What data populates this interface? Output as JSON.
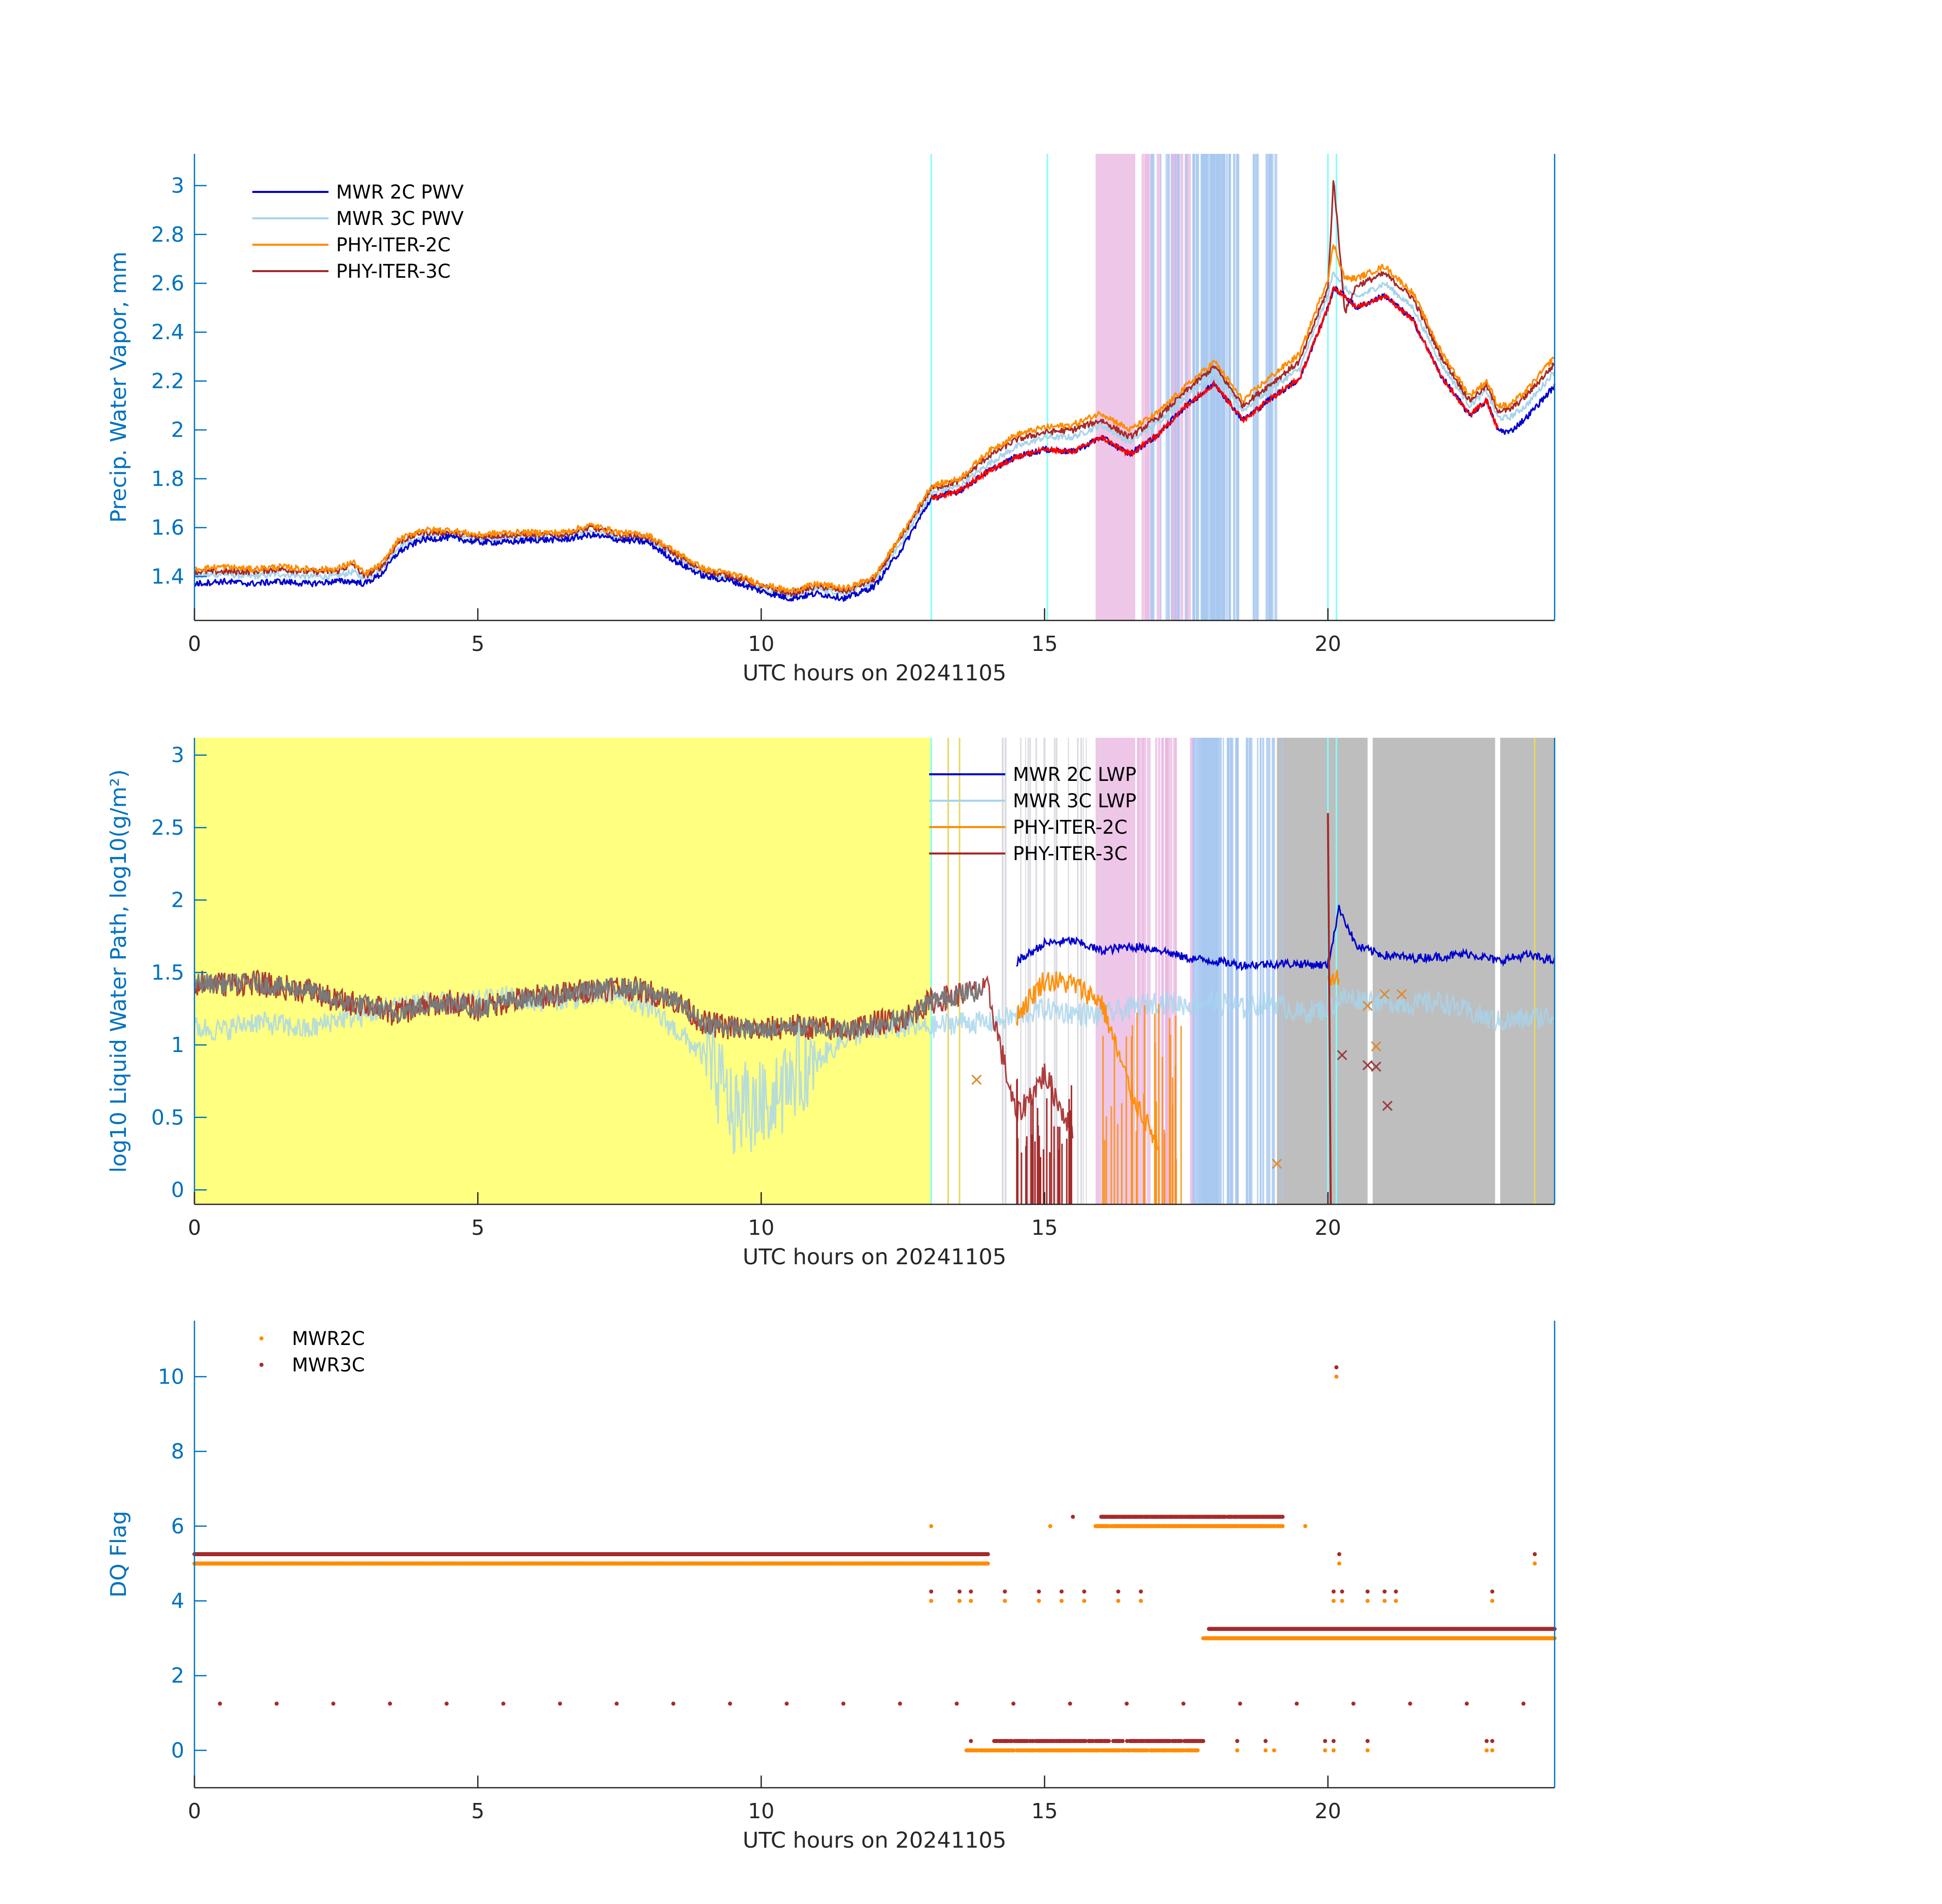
{
  "chart_data": [
    {
      "type": "line",
      "panel": "top",
      "title": "",
      "xlabel": "UTC hours on 20241105",
      "ylabel": "Precip. Water Vapor, mm",
      "xlim": [
        0,
        24
      ],
      "ylim": [
        1.22,
        3.13
      ],
      "xticks": [
        0,
        5,
        10,
        15,
        20
      ],
      "yticks": [
        1.4,
        1.6,
        1.8,
        2,
        2.2,
        2.4,
        2.6,
        2.8,
        3
      ],
      "ytick_labels": [
        "1.4",
        "1.6",
        "1.8",
        "2",
        "2.2",
        "2.4",
        "2.6",
        "2.8",
        "3"
      ],
      "legend_location": "top-left",
      "x": [
        0,
        0.5,
        1,
        1.5,
        2,
        2.5,
        2.8,
        3,
        3.3,
        3.6,
        4,
        4.5,
        5,
        5.5,
        6,
        6.5,
        7,
        7.5,
        8,
        8.5,
        9,
        9.5,
        10,
        10.5,
        11,
        11.5,
        12,
        12.5,
        13,
        13.5,
        14,
        14.5,
        15,
        15.5,
        16,
        16.5,
        17,
        17.5,
        18,
        18.5,
        19,
        19.5,
        20,
        20.1,
        20.3,
        20.5,
        21,
        21.5,
        22,
        22.5,
        22.8,
        23,
        23.2,
        23.5,
        24
      ],
      "series": [
        {
          "name": "MWR 2C PWV",
          "color": "#0000CD",
          "values": [
            1.37,
            1.38,
            1.37,
            1.38,
            1.37,
            1.38,
            1.38,
            1.37,
            1.41,
            1.5,
            1.55,
            1.56,
            1.54,
            1.54,
            1.55,
            1.55,
            1.57,
            1.55,
            1.54,
            1.46,
            1.4,
            1.38,
            1.34,
            1.31,
            1.33,
            1.31,
            1.36,
            1.52,
            1.72,
            1.75,
            1.83,
            1.89,
            1.92,
            1.91,
            1.97,
            1.9,
            1.98,
            2.1,
            2.19,
            2.04,
            2.13,
            2.21,
            2.5,
            2.58,
            2.55,
            2.5,
            2.55,
            2.45,
            2.22,
            2.06,
            2.12,
            2.0,
            1.99,
            2.05,
            2.18
          ]
        },
        {
          "name": "MWR 3C PWV",
          "color": "#A6D4EC",
          "values": [
            1.4,
            1.41,
            1.4,
            1.41,
            1.4,
            1.4,
            1.42,
            1.39,
            1.43,
            1.52,
            1.56,
            1.57,
            1.55,
            1.56,
            1.56,
            1.56,
            1.58,
            1.56,
            1.55,
            1.48,
            1.41,
            1.39,
            1.35,
            1.32,
            1.35,
            1.33,
            1.38,
            1.55,
            1.74,
            1.77,
            1.86,
            1.93,
            1.97,
            1.97,
            2.02,
            1.95,
            2.03,
            2.14,
            2.24,
            2.08,
            2.17,
            2.25,
            2.55,
            2.65,
            2.58,
            2.54,
            2.6,
            2.5,
            2.27,
            2.1,
            2.16,
            2.05,
            2.05,
            2.1,
            2.24
          ]
        },
        {
          "name": "PHY-ITER-2C",
          "color": "#FF8C00",
          "values": [
            1.43,
            1.44,
            1.43,
            1.44,
            1.43,
            1.43,
            1.46,
            1.41,
            1.45,
            1.55,
            1.59,
            1.59,
            1.57,
            1.58,
            1.58,
            1.58,
            1.61,
            1.58,
            1.57,
            1.5,
            1.43,
            1.41,
            1.37,
            1.34,
            1.37,
            1.35,
            1.4,
            1.58,
            1.77,
            1.8,
            1.91,
            1.98,
            2.01,
            2.02,
            2.07,
            2.0,
            2.07,
            2.18,
            2.28,
            2.12,
            2.22,
            2.31,
            2.62,
            2.76,
            2.62,
            2.62,
            2.67,
            2.56,
            2.32,
            2.14,
            2.2,
            2.1,
            2.1,
            2.16,
            2.3
          ]
        },
        {
          "name": "PHY-ITER-3C",
          "color": "#A52A2A",
          "values": [
            1.42,
            1.42,
            1.42,
            1.43,
            1.42,
            1.42,
            1.45,
            1.4,
            1.44,
            1.54,
            1.58,
            1.58,
            1.56,
            1.57,
            1.57,
            1.57,
            1.6,
            1.57,
            1.56,
            1.49,
            1.42,
            1.4,
            1.36,
            1.33,
            1.36,
            1.34,
            1.39,
            1.57,
            1.76,
            1.79,
            1.89,
            1.96,
            1.99,
            2.0,
            2.04,
            1.97,
            2.05,
            2.16,
            2.26,
            2.1,
            2.19,
            2.28,
            2.58,
            3.03,
            2.48,
            2.59,
            2.64,
            2.54,
            2.3,
            2.12,
            2.18,
            2.08,
            2.08,
            2.14,
            2.27
          ]
        }
      ]
    },
    {
      "type": "line",
      "panel": "middle",
      "title": "",
      "xlabel": "UTC hours on 20241105",
      "ylabel": "log10 Liquid Water Path, log10(g/m²)",
      "xlim": [
        0,
        24
      ],
      "ylim": [
        -0.1,
        3.12
      ],
      "xticks": [
        0,
        5,
        10,
        15,
        20
      ],
      "yticks": [
        0,
        0.5,
        1,
        1.5,
        2,
        2.5,
        3
      ],
      "ytick_labels": [
        "0",
        "0.5",
        "1",
        "1.5",
        "2",
        "2.5",
        "3"
      ],
      "legend_location": "top-middle",
      "x": [
        0,
        0.5,
        1,
        1.5,
        2,
        2.5,
        3,
        3.5,
        4,
        4.5,
        5,
        5.5,
        6,
        6.5,
        7,
        7.5,
        8,
        8.5,
        9,
        9.5,
        10,
        10.5,
        11,
        11.5,
        12,
        12.5,
        13,
        13.5,
        14,
        14.5,
        15,
        15.5,
        16,
        16.5,
        17,
        17.5,
        18,
        18.5,
        19,
        19.5,
        20,
        20.2,
        20.5,
        21,
        21.5,
        22,
        22.5,
        23,
        23.5,
        24
      ],
      "series": [
        {
          "name": "MWR 2C LWP",
          "color": "#0000CD",
          "values": [
            null,
            null,
            null,
            null,
            null,
            null,
            null,
            null,
            null,
            null,
            null,
            null,
            null,
            null,
            null,
            null,
            null,
            null,
            null,
            null,
            null,
            null,
            null,
            null,
            null,
            null,
            null,
            null,
            null,
            1.57,
            1.7,
            1.72,
            1.65,
            1.68,
            1.66,
            1.6,
            1.58,
            1.55,
            1.56,
            1.56,
            1.55,
            1.95,
            1.68,
            1.62,
            1.6,
            1.61,
            1.63,
            1.58,
            1.62,
            1.58
          ]
        },
        {
          "name": "MWR 3C LWP",
          "color": "#A6D4EC",
          "values": [
            1.12,
            1.1,
            1.16,
            1.14,
            1.1,
            1.18,
            1.2,
            1.28,
            1.3,
            1.28,
            1.3,
            1.33,
            1.3,
            1.32,
            1.33,
            1.35,
            1.26,
            1.1,
            0.92,
            0.55,
            0.6,
            0.75,
            0.9,
            1.05,
            1.1,
            1.12,
            1.12,
            1.16,
            1.15,
            1.2,
            1.25,
            1.22,
            1.2,
            1.25,
            1.3,
            1.28,
            1.3,
            1.25,
            1.3,
            1.22,
            1.25,
            1.32,
            1.32,
            1.3,
            1.28,
            1.3,
            1.22,
            1.16,
            1.18,
            1.2
          ]
        },
        {
          "name": "PHY-ITER-2C",
          "color": "#FF8C00",
          "values": [
            null,
            null,
            null,
            null,
            null,
            null,
            null,
            null,
            null,
            null,
            null,
            null,
            null,
            null,
            null,
            null,
            null,
            null,
            null,
            null,
            null,
            null,
            null,
            null,
            null,
            null,
            null,
            null,
            null,
            1.2,
            1.45,
            1.42,
            1.3,
            0.7,
            0.3,
            null,
            null,
            null,
            null,
            null,
            1.4,
            1.45,
            null,
            null,
            null,
            null,
            null,
            null,
            null,
            null
          ]
        },
        {
          "name": "PHY-ITER-3C",
          "color": "#A52A2A",
          "values": [
            1.43,
            1.42,
            1.43,
            1.4,
            1.38,
            1.3,
            1.28,
            1.22,
            1.26,
            1.3,
            1.25,
            1.3,
            1.33,
            1.35,
            1.38,
            1.4,
            1.37,
            1.3,
            1.15,
            1.12,
            1.1,
            1.13,
            1.12,
            1.1,
            1.15,
            1.18,
            1.3,
            1.35,
            1.38,
            0.5,
            0.8,
            0.4,
            null,
            null,
            null,
            null,
            null,
            null,
            null,
            null,
            2.4,
            null,
            null,
            null,
            null,
            null,
            null,
            null,
            null,
            null
          ]
        }
      ],
      "markers": {
        "PHY-ITER-2C": {
          "x": [
            13.8,
            19.1,
            20.7,
            20.85,
            21.0,
            21.3
          ],
          "y": [
            0.76,
            0.18,
            1.27,
            0.99,
            1.35,
            1.35
          ]
        },
        "PHY-ITER-3C": {
          "x": [
            20.25,
            20.7,
            20.85,
            21.05
          ],
          "y": [
            0.93,
            0.86,
            0.85,
            0.58
          ]
        }
      },
      "shading": {
        "yellow_region": [
          0,
          13
        ],
        "gray_region": [
          19.1,
          24
        ]
      }
    },
    {
      "type": "scatter",
      "panel": "bottom",
      "title": "",
      "xlabel": "UTC hours on 20241105",
      "ylabel": "DQ Flag",
      "xlim": [
        0,
        24
      ],
      "ylim": [
        -1,
        11.5
      ],
      "xticks": [
        0,
        5,
        10,
        15,
        20
      ],
      "yticks": [
        0,
        2,
        4,
        6,
        8,
        10
      ],
      "ytick_labels": [
        "0",
        "2",
        "4",
        "6",
        "8",
        "10"
      ],
      "legend_location": "top-left",
      "series": [
        {
          "name": "MWR2C",
          "color": "#FF8C00",
          "runs": [
            [
              0,
              14,
              5
            ],
            [
              13.6,
              17.7,
              0
            ],
            [
              15.9,
              19.2,
              6
            ],
            [
              17.8,
              24,
              3
            ]
          ],
          "points": [
            [
              13,
              6
            ],
            [
              15.1,
              6
            ],
            [
              19.6,
              6
            ],
            [
              20.15,
              10
            ],
            [
              20.2,
              5
            ],
            [
              23.65,
              5
            ],
            [
              13,
              4
            ],
            [
              13.5,
              4
            ],
            [
              13.7,
              4
            ],
            [
              14.3,
              4
            ],
            [
              14.9,
              4
            ],
            [
              15.3,
              4
            ],
            [
              15.7,
              4
            ],
            [
              16.3,
              4
            ],
            [
              16.7,
              4
            ],
            [
              20.1,
              4
            ],
            [
              20.25,
              4
            ],
            [
              20.7,
              4
            ],
            [
              21.0,
              4
            ],
            [
              21.2,
              4
            ],
            [
              22.9,
              4
            ],
            [
              18.4,
              0
            ],
            [
              18.9,
              0
            ],
            [
              19.05,
              0
            ],
            [
              19.95,
              0
            ],
            [
              20.1,
              0
            ],
            [
              20.7,
              0
            ],
            [
              22.8,
              0
            ],
            [
              22.9,
              0
            ]
          ]
        },
        {
          "name": "MWR3C",
          "color": "#A52A2A",
          "runs": [
            [
              0,
              14,
              5.25
            ],
            [
              14.1,
              17.8,
              0.25
            ],
            [
              16.0,
              19.2,
              6.25
            ],
            [
              17.9,
              24,
              3.25
            ]
          ],
          "points": [
            [
              0.45,
              1.25
            ],
            [
              1.45,
              1.25
            ],
            [
              2.45,
              1.25
            ],
            [
              3.45,
              1.25
            ],
            [
              4.45,
              1.25
            ],
            [
              5.45,
              1.25
            ],
            [
              6.45,
              1.25
            ],
            [
              7.45,
              1.25
            ],
            [
              8.45,
              1.25
            ],
            [
              9.45,
              1.25
            ],
            [
              10.45,
              1.25
            ],
            [
              11.45,
              1.25
            ],
            [
              12.45,
              1.25
            ],
            [
              13.45,
              1.25
            ],
            [
              14.45,
              1.25
            ],
            [
              15.45,
              1.25
            ],
            [
              16.45,
              1.25
            ],
            [
              17.45,
              1.25
            ],
            [
              18.45,
              1.25
            ],
            [
              19.45,
              1.25
            ],
            [
              20.45,
              1.25
            ],
            [
              21.45,
              1.25
            ],
            [
              22.45,
              1.25
            ],
            [
              23.45,
              1.25
            ],
            [
              15.5,
              6.25
            ],
            [
              20.15,
              10.25
            ],
            [
              20.2,
              5.25
            ],
            [
              23.65,
              5.25
            ],
            [
              13,
              4.25
            ],
            [
              13.5,
              4.25
            ],
            [
              13.7,
              4.25
            ],
            [
              14.3,
              4.25
            ],
            [
              14.9,
              4.25
            ],
            [
              15.3,
              4.25
            ],
            [
              15.7,
              4.25
            ],
            [
              16.3,
              4.25
            ],
            [
              16.7,
              4.25
            ],
            [
              20.1,
              4.25
            ],
            [
              20.25,
              4.25
            ],
            [
              20.7,
              4.25
            ],
            [
              21.0,
              4.25
            ],
            [
              21.2,
              4.25
            ],
            [
              22.9,
              4.25
            ],
            [
              13.7,
              0.25
            ],
            [
              18.4,
              0.25
            ],
            [
              18.9,
              0.25
            ],
            [
              19.95,
              0.25
            ],
            [
              20.1,
              0.25
            ],
            [
              20.7,
              0.25
            ],
            [
              22.8,
              0.25
            ],
            [
              22.9,
              0.25
            ]
          ]
        }
      ]
    }
  ],
  "shading_colors": {
    "cyan": "#7FFFFF",
    "light_blue": "#A8C8F0",
    "pink": "#E8B4E0",
    "yellow": "#FFFF80",
    "gray": "#BEBEBE"
  }
}
